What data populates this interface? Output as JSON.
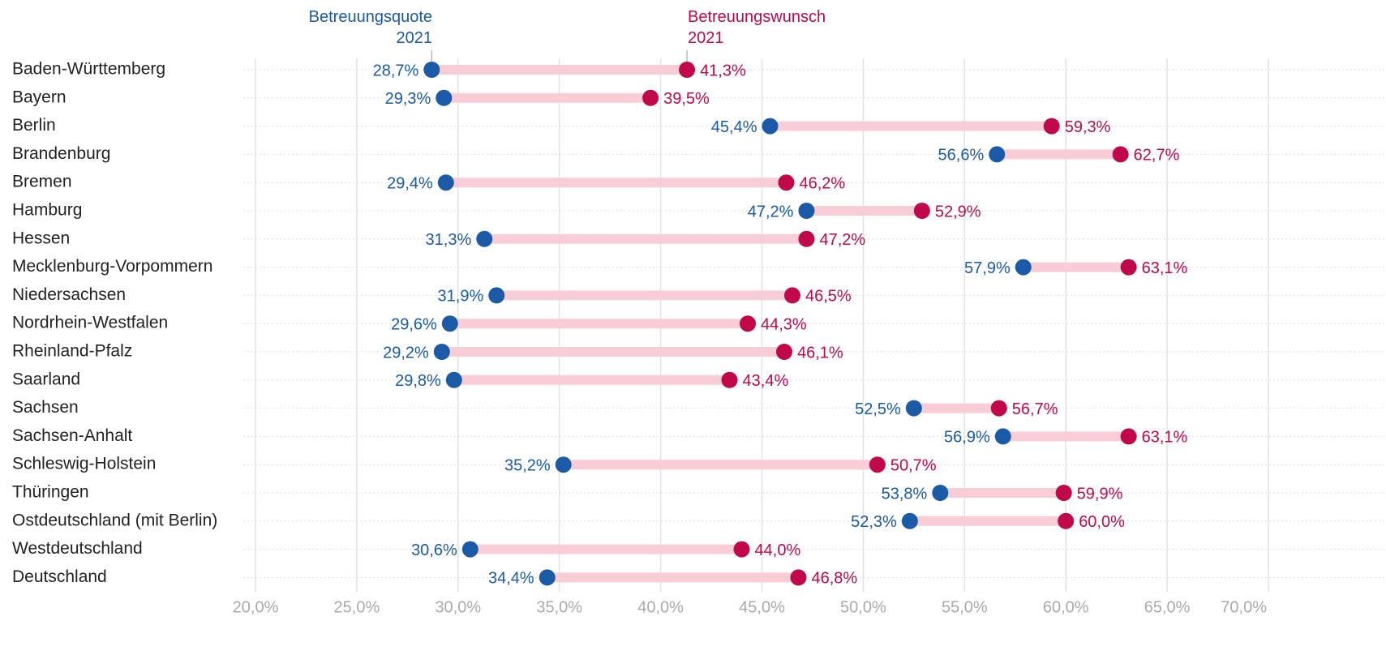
{
  "chart_data": {
    "type": "dumbbell",
    "categories": [
      "Baden-Württemberg",
      "Bayern",
      "Berlin",
      "Brandenburg",
      "Bremen",
      "Hamburg",
      "Hessen",
      "Mecklenburg-Vorpommern",
      "Niedersachsen",
      "Nordrhein-Westfalen",
      "Rheinland-Pfalz",
      "Saarland",
      "Sachsen",
      "Sachsen-Anhalt",
      "Schleswig-Holstein",
      "Thüringen",
      "Ostdeutschland (mit Berlin)",
      "Westdeutschland",
      "Deutschland"
    ],
    "series": [
      {
        "name": "Betreuungsquote 2021",
        "color": "#1a5aa6",
        "values": [
          28.7,
          29.3,
          45.4,
          56.6,
          29.4,
          47.2,
          31.3,
          57.9,
          31.9,
          29.6,
          29.2,
          29.8,
          52.5,
          56.9,
          35.2,
          53.8,
          52.3,
          30.6,
          34.4
        ],
        "value_labels": [
          "28,7%",
          "29,3%",
          "45,4%",
          "56,6%",
          "29,4%",
          "47,2%",
          "31,3%",
          "57,9%",
          "31,9%",
          "29,6%",
          "29,2%",
          "29,8%",
          "52,5%",
          "56,9%",
          "35,2%",
          "53,8%",
          "52,3%",
          "30,6%",
          "34,4%"
        ]
      },
      {
        "name": "Betreuungswunsch 2021",
        "color": "#c0084a",
        "values": [
          41.3,
          39.5,
          59.3,
          62.7,
          46.2,
          52.9,
          47.2,
          63.1,
          46.5,
          44.3,
          46.1,
          43.4,
          56.7,
          63.1,
          50.7,
          59.9,
          60.0,
          44.0,
          46.8
        ],
        "value_labels": [
          "41,3%",
          "39,5%",
          "59,3%",
          "62,7%",
          "46,2%",
          "52,9%",
          "47,2%",
          "63,1%",
          "46,5%",
          "44,3%",
          "46,1%",
          "43,4%",
          "56,7%",
          "63,1%",
          "50,7%",
          "59,9%",
          "60,0%",
          "44,0%",
          "46,8%"
        ]
      }
    ],
    "connector_color": "#f9cdd6",
    "xlim": [
      20,
      70
    ],
    "xticks": [
      {
        "value": 20,
        "label": "20,0%"
      },
      {
        "value": 25,
        "label": "25,0%"
      },
      {
        "value": 30,
        "label": "30,0%"
      },
      {
        "value": 35,
        "label": "35,0%"
      },
      {
        "value": 40,
        "label": "40,0%"
      },
      {
        "value": 45,
        "label": "45,0%"
      },
      {
        "value": 50,
        "label": "50,0%"
      },
      {
        "value": 55,
        "label": "55,0%"
      },
      {
        "value": 60,
        "label": "60,0%"
      },
      {
        "value": 65,
        "label": "65,0%"
      },
      {
        "value": 70,
        "label": "70,0%"
      }
    ],
    "grid": true
  }
}
